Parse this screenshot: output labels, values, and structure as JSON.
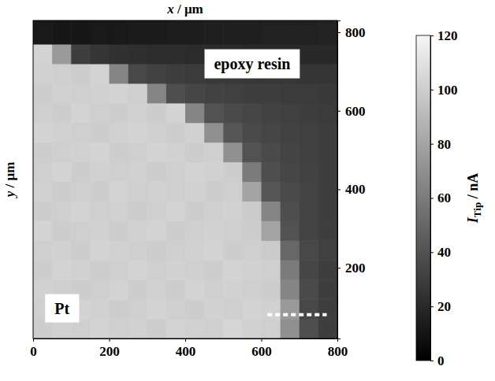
{
  "chart_data": {
    "type": "heatmap",
    "xlabel": "x / μm",
    "ylabel": "y / μm",
    "xlim": [
      0,
      800
    ],
    "ylim": [
      20,
      830
    ],
    "xticks": [
      0,
      200,
      400,
      600,
      800
    ],
    "yticks": [
      200,
      400,
      600,
      800
    ],
    "annotations": [
      "epoxy resin",
      "Pt"
    ],
    "cells": {
      "x_edges": [
        0,
        50,
        100,
        150,
        200,
        250,
        300,
        350,
        400,
        450,
        500,
        550,
        600,
        650,
        700,
        750,
        800
      ],
      "y_edges": [
        20,
        70,
        120,
        170,
        220,
        270,
        320,
        370,
        420,
        470,
        520,
        570,
        620,
        670,
        720,
        770,
        830
      ],
      "values": [
        [
          100,
          102,
          101,
          103,
          101,
          102,
          100,
          103,
          102,
          101,
          104,
          102,
          101,
          70,
          38,
          30
        ],
        [
          101,
          100,
          103,
          102,
          100,
          101,
          103,
          101,
          100,
          102,
          101,
          103,
          102,
          75,
          35,
          30
        ],
        [
          102,
          101,
          100,
          101,
          103,
          100,
          102,
          100,
          103,
          101,
          102,
          101,
          100,
          65,
          36,
          30
        ],
        [
          100,
          103,
          102,
          100,
          101,
          103,
          101,
          102,
          101,
          100,
          103,
          102,
          101,
          60,
          34,
          30
        ],
        [
          101,
          102,
          100,
          103,
          102,
          101,
          100,
          101,
          102,
          103,
          100,
          101,
          99,
          50,
          35,
          31
        ],
        [
          103,
          100,
          101,
          102,
          100,
          102,
          103,
          100,
          101,
          102,
          101,
          100,
          80,
          40,
          33,
          30
        ],
        [
          100,
          101,
          103,
          101,
          102,
          100,
          101,
          103,
          100,
          101,
          102,
          99,
          65,
          38,
          33,
          30
        ],
        [
          102,
          100,
          101,
          100,
          103,
          101,
          102,
          101,
          102,
          100,
          101,
          80,
          42,
          36,
          33,
          30
        ],
        [
          101,
          103,
          100,
          102,
          101,
          102,
          100,
          101,
          103,
          102,
          100,
          60,
          38,
          34,
          32,
          30
        ],
        [
          100,
          101,
          102,
          103,
          100,
          101,
          103,
          102,
          100,
          101,
          70,
          40,
          36,
          33,
          31,
          30
        ],
        [
          103,
          102,
          101,
          100,
          102,
          103,
          101,
          100,
          102,
          70,
          42,
          36,
          34,
          32,
          31,
          30
        ],
        [
          101,
          100,
          103,
          101,
          100,
          102,
          100,
          103,
          65,
          40,
          36,
          34,
          32,
          31,
          30,
          29
        ],
        [
          100,
          102,
          101,
          102,
          103,
          101,
          65,
          38,
          34,
          32,
          31,
          30,
          30,
          29,
          29,
          28
        ],
        [
          102,
          101,
          100,
          103,
          65,
          35,
          32,
          30,
          29,
          28,
          28,
          27,
          27,
          27,
          26,
          26
        ],
        [
          103,
          75,
          30,
          26,
          24,
          23,
          22,
          22,
          21,
          21,
          21,
          20,
          20,
          20,
          20,
          20
        ],
        [
          12,
          11,
          11,
          12,
          12,
          13,
          13,
          14,
          14,
          15,
          15,
          15,
          16,
          16,
          16,
          17
        ]
      ]
    },
    "colorbar": {
      "label": "ITip / nA",
      "range": [
        0,
        120
      ],
      "ticks": [
        0,
        20,
        40,
        60,
        80,
        100,
        120
      ]
    }
  }
}
